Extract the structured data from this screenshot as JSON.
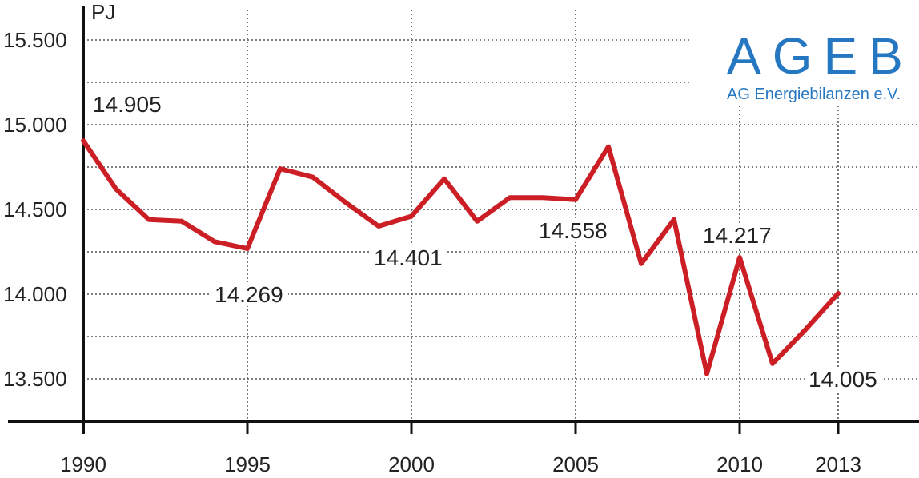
{
  "chart_data": {
    "type": "line",
    "unit": "PJ",
    "x": [
      1990,
      1991,
      1992,
      1993,
      1994,
      1995,
      1996,
      1997,
      1998,
      1999,
      2000,
      2001,
      2002,
      2003,
      2004,
      2005,
      2006,
      2007,
      2008,
      2009,
      2010,
      2011,
      2012,
      2013
    ],
    "values": [
      14905,
      14620,
      14440,
      14430,
      14310,
      14269,
      14740,
      14690,
      14540,
      14401,
      14460,
      14680,
      14430,
      14570,
      14570,
      14558,
      14870,
      14180,
      14440,
      13530,
      14217,
      13590,
      13790,
      14005
    ],
    "x_ticks": [
      "1990",
      "1995",
      "2000",
      "2005",
      "2010",
      "2013"
    ],
    "y_ticks": [
      "13.500",
      "14.000",
      "14.500",
      "15.000",
      "15.500"
    ],
    "ylim": [
      13250,
      15750
    ],
    "grid": true,
    "line_color": "#cc1f25",
    "data_labels": [
      {
        "year": 1990,
        "text": "14.905"
      },
      {
        "year": 1995,
        "text": "14.269"
      },
      {
        "year": 1999,
        "text": "14.401"
      },
      {
        "year": 2005,
        "text": "14.558"
      },
      {
        "year": 2010,
        "text": "14.217"
      },
      {
        "year": 2013,
        "text": "14.005"
      }
    ]
  },
  "logo": {
    "name": "AGEB",
    "subtitle": "AG Energiebilanzen e.V.",
    "color": "#2677c2"
  }
}
